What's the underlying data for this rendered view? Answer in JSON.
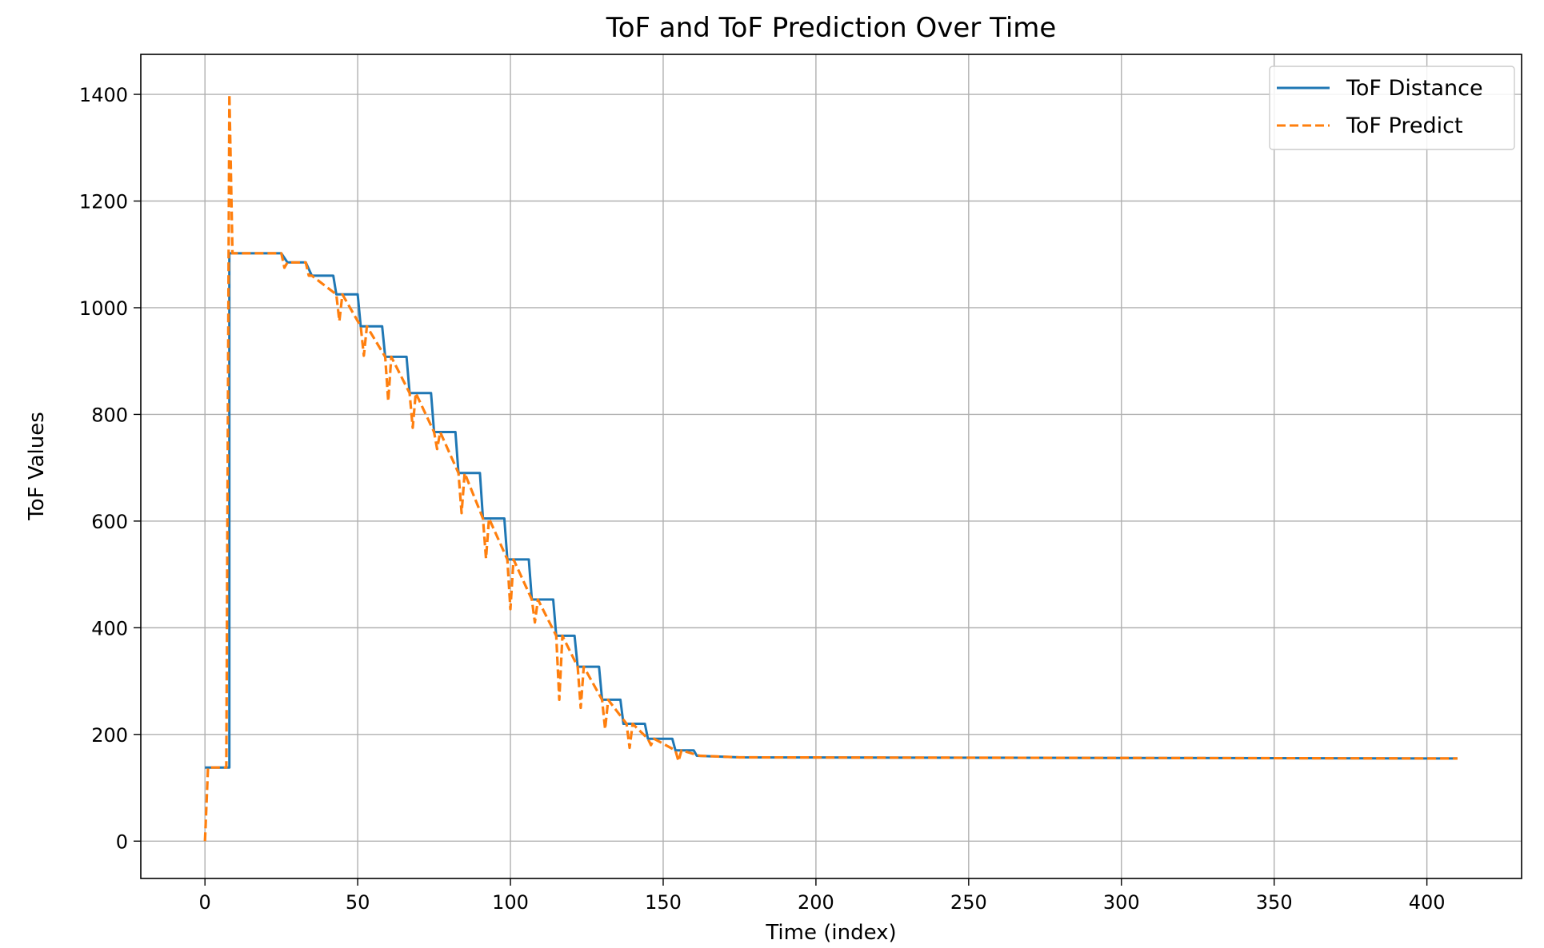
{
  "chart_data": {
    "type": "line",
    "title": "ToF and ToF Prediction Over Time",
    "xlabel": "Time (index)",
    "ylabel": "ToF Values",
    "xlim": [
      -21,
      431
    ],
    "ylim": [
      -70,
      1475
    ],
    "xticks": [
      0,
      50,
      100,
      150,
      200,
      250,
      300,
      350,
      400
    ],
    "yticks": [
      0,
      200,
      400,
      600,
      800,
      1000,
      1200,
      1400
    ],
    "grid": true,
    "legend_position": "top-right",
    "series": [
      {
        "name": "ToF Distance",
        "color": "#1f77b4",
        "style": "solid",
        "x": [
          0,
          8,
          8,
          25,
          27,
          33,
          35,
          42,
          43,
          50,
          51,
          58,
          59,
          66,
          67,
          74,
          75,
          82,
          83,
          90,
          91,
          98,
          99,
          106,
          107,
          114,
          115,
          121,
          122,
          129,
          130,
          136,
          137,
          144,
          145,
          153,
          154,
          160,
          161,
          175,
          410
        ],
        "y": [
          138,
          138,
          1102,
          1102,
          1085,
          1085,
          1060,
          1060,
          1025,
          1025,
          965,
          965,
          908,
          908,
          840,
          840,
          767,
          767,
          690,
          690,
          605,
          605,
          528,
          528,
          453,
          453,
          385,
          385,
          327,
          327,
          265,
          265,
          220,
          220,
          192,
          192,
          170,
          170,
          160,
          157,
          155
        ]
      },
      {
        "name": "ToF Predict",
        "color": "#ff7f0e",
        "style": "dashed",
        "x": [
          0,
          1,
          2,
          7,
          8,
          9,
          10,
          25,
          26,
          27,
          33,
          34,
          35,
          43,
          44,
          45,
          51,
          52,
          53,
          59,
          60,
          61,
          67,
          68,
          69,
          75,
          76,
          77,
          83,
          84,
          85,
          91,
          92,
          93,
          99,
          100,
          101,
          107,
          108,
          109,
          115,
          116,
          117,
          122,
          123,
          124,
          130,
          131,
          132,
          138,
          139,
          140,
          145,
          146,
          147,
          154,
          155,
          156,
          162,
          175,
          410
        ],
        "y": [
          0,
          138,
          138,
          138,
          1400,
          1102,
          1102,
          1102,
          1075,
          1085,
          1085,
          1060,
          1060,
          1025,
          975,
          1025,
          965,
          910,
          965,
          908,
          825,
          908,
          840,
          775,
          840,
          767,
          735,
          767,
          690,
          615,
          690,
          605,
          530,
          605,
          528,
          435,
          528,
          453,
          410,
          453,
          385,
          265,
          385,
          327,
          250,
          327,
          265,
          210,
          265,
          220,
          175,
          220,
          192,
          180,
          192,
          170,
          150,
          170,
          160,
          157,
          155
        ]
      }
    ]
  }
}
